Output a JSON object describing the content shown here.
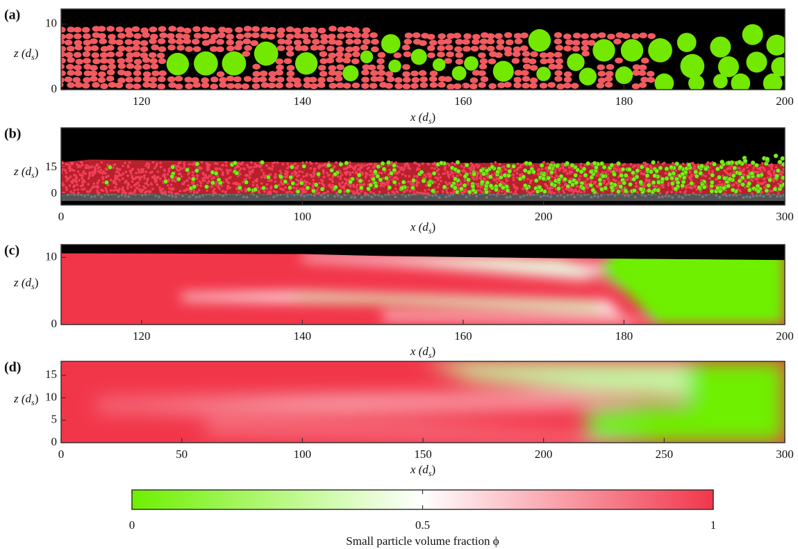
{
  "chart_data": [
    {
      "type": "particles",
      "label": "(a)",
      "xlabel": [
        "x (d",
        "s",
        ")"
      ],
      "ylabel": [
        "z (d",
        "s",
        ")"
      ],
      "xlim": [
        110,
        200
      ],
      "xticks": [
        120,
        140,
        160,
        180,
        200
      ],
      "ylim": [
        0,
        12.3
      ],
      "yticks": [
        0,
        10
      ]
    },
    {
      "type": "particles",
      "label": "(b)",
      "xlabel": [
        "x (d",
        "s",
        ")"
      ],
      "ylabel": [
        "z (d",
        "s",
        ")"
      ],
      "xlim": [
        0,
        300
      ],
      "xticks": [
        0,
        100,
        200,
        300
      ],
      "ylim": [
        -6.3,
        37.5
      ],
      "yticks": [
        0,
        15
      ]
    },
    {
      "type": "heatmap",
      "label": "(c)",
      "xlabel": [
        "x (d",
        "s",
        ")"
      ],
      "ylabel": [
        "z (d",
        "s",
        ")"
      ],
      "xlim": [
        110,
        200
      ],
      "xticks": [
        120,
        140,
        160,
        180,
        200
      ],
      "ylim": [
        0,
        11.9
      ],
      "yticks": [
        0,
        10
      ]
    },
    {
      "type": "heatmap",
      "label": "(d)",
      "xlabel": [
        "x (d",
        "s",
        ")"
      ],
      "ylabel": [
        "z (d",
        "s",
        ")"
      ],
      "xlim": [
        0,
        300
      ],
      "xticks": [
        0,
        50,
        100,
        150,
        200,
        250,
        300
      ],
      "ylim": [
        0,
        18.1
      ],
      "yticks": [
        0,
        5,
        10,
        15
      ]
    },
    {
      "type": "colorbar",
      "title": "Small particle volume fraction ϕ",
      "clim": [
        0,
        1
      ],
      "ticks": [
        0,
        0.5,
        1
      ],
      "colors": [
        "#6ef000",
        "#ffffff",
        "#f2364a"
      ]
    }
  ]
}
